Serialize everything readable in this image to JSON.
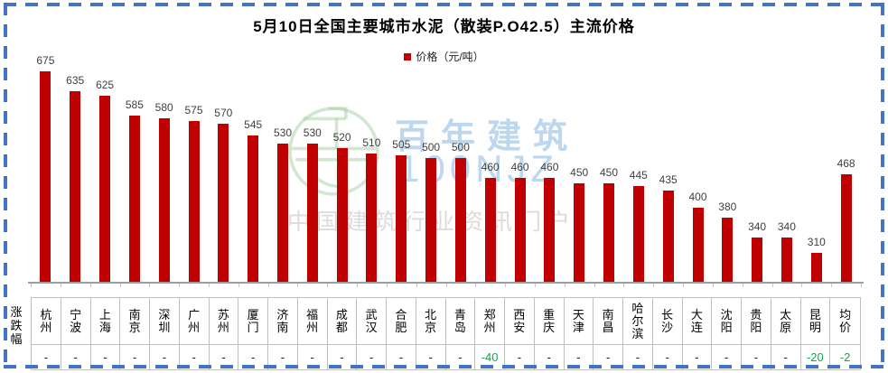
{
  "frame": {
    "border_color": "#4472C4",
    "background": "#FFFFFF"
  },
  "chart": {
    "title": "5月10日全国主要城市水泥（散装P.O42.5）主流价格",
    "legend_label": "价格（元/吨）"
  },
  "watermark": {
    "logo": "hundred-year-building-seal",
    "brand": "百年建筑",
    "brand_latin": "100NJZ",
    "tagline": "中国建筑行业资讯门户",
    "brand_color": "#BDD7EE",
    "tagline_color": "#DBDBDB",
    "logo_color": "#A9D3A9"
  },
  "table": {
    "row_header": "涨跌幅"
  },
  "chart_data": {
    "type": "bar",
    "title": "5月10日全国主要城市水泥（散装P.O42.5）主流价格",
    "legend": [
      "价格（元/吨）"
    ],
    "legend_position": "top-center",
    "grid": false,
    "ylim": [
      250,
      700
    ],
    "bar_color": "#C00000",
    "value_label_color": "#404040",
    "negative_change_color": "#00B050",
    "categories": [
      "杭州",
      "宁波",
      "上海",
      "南京",
      "深圳",
      "广州",
      "苏州",
      "厦门",
      "济南",
      "福州",
      "成都",
      "武汉",
      "合肥",
      "北京",
      "青岛",
      "郑州",
      "西安",
      "重庆",
      "天津",
      "南昌",
      "哈尔滨",
      "长沙",
      "大连",
      "沈阳",
      "贵阳",
      "太原",
      "昆明",
      "均价"
    ],
    "values": [
      675,
      635,
      625,
      585,
      580,
      575,
      570,
      545,
      530,
      530,
      520,
      510,
      505,
      500,
      500,
      460,
      460,
      460,
      450,
      450,
      445,
      435,
      400,
      380,
      340,
      340,
      310,
      468
    ],
    "changes": [
      "-",
      "-",
      "-",
      "-",
      "-",
      "-",
      "-",
      "-",
      "-",
      "-",
      "-",
      "-",
      "-",
      "-",
      "-",
      "-40",
      "-",
      "-",
      "-",
      "-",
      "-",
      "-",
      "-",
      "-",
      "-",
      "-",
      "-20",
      "-2"
    ]
  }
}
